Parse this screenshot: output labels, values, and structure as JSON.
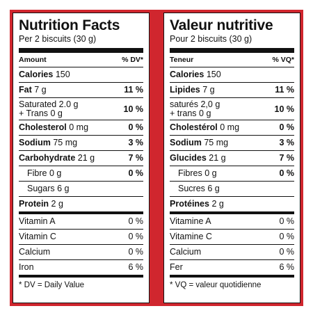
{
  "panels": {
    "en": {
      "title": "Nutrition Facts",
      "serving": "Per 2 biscuits (30 g)",
      "header_left": "Amount",
      "header_right": "% DV*",
      "calories_label": "Calories",
      "calories_value": "150",
      "fat_label": "Fat",
      "fat_amount": "7 g",
      "fat_dv": "11 %",
      "saturated_line": "Saturated 2.0 g",
      "trans_line": "+ Trans 0 g",
      "sat_trans_dv": "10 %",
      "cholesterol_label": "Cholesterol",
      "cholesterol_amount": "0 mg",
      "cholesterol_dv": "0 %",
      "sodium_label": "Sodium",
      "sodium_amount": "75 mg",
      "sodium_dv": "3 %",
      "carb_label": "Carbohydrate",
      "carb_amount": "21 g",
      "carb_dv": "7 %",
      "fibre_label": "Fibre 0 g",
      "fibre_dv": "0 %",
      "sugars_label": "Sugars 6 g",
      "protein_label": "Protein",
      "protein_amount": "2 g",
      "vitamins": [
        {
          "name": "Vitamin A",
          "dv": "0 %"
        },
        {
          "name": "Vitamin C",
          "dv": "0 %"
        },
        {
          "name": "Calcium",
          "dv": "0 %"
        },
        {
          "name": "Iron",
          "dv": "6 %"
        }
      ],
      "footnote": "* DV = Daily Value"
    },
    "fr": {
      "title": "Valeur nutritive",
      "serving": "Pour 2 biscuits (30 g)",
      "header_left": "Teneur",
      "header_right": "% VQ*",
      "calories_label": "Calories",
      "calories_value": "150",
      "fat_label": "Lipides",
      "fat_amount": "7 g",
      "fat_dv": "11 %",
      "saturated_line": "saturés 2,0 g",
      "trans_line": "+ trans 0 g",
      "sat_trans_dv": "10 %",
      "cholesterol_label": "Cholestérol",
      "cholesterol_amount": "0 mg",
      "cholesterol_dv": "0 %",
      "sodium_label": "Sodium",
      "sodium_amount": "75 mg",
      "sodium_dv": "3 %",
      "carb_label": "Glucides",
      "carb_amount": "21 g",
      "carb_dv": "7 %",
      "fibre_label": "Fibres 0 g",
      "fibre_dv": "0 %",
      "sugars_label": "Sucres 6 g",
      "protein_label": "Protéines",
      "protein_amount": "2 g",
      "vitamins": [
        {
          "name": "Vitamine A",
          "dv": "0 %"
        },
        {
          "name": "Vitamine C",
          "dv": "0 %"
        },
        {
          "name": "Calcium",
          "dv": "0 %"
        },
        {
          "name": "Fer",
          "dv": "6 %"
        }
      ],
      "footnote": "* VQ = valeur quotidienne"
    }
  },
  "colors": {
    "border_red": "#d0262e",
    "text": "#111111",
    "background": "#ffffff"
  }
}
